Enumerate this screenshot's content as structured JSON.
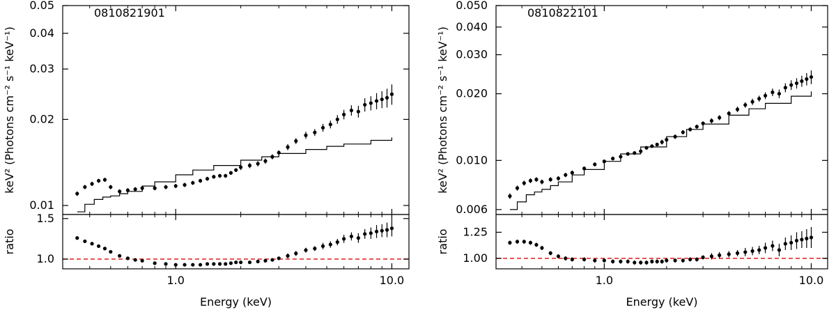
{
  "figure": {
    "xlabel": "Energy (keV)",
    "ylabel_top": "keV² (Photons cm⁻² s⁻¹ keV⁻¹)",
    "ylabel_bottom": "ratio"
  },
  "chart_data": [
    {
      "type": "scatter",
      "title": "0810821901",
      "x_scale": "log",
      "y_scale": "log",
      "xlim": [
        0.3,
        12.0
      ],
      "xticks": [
        1.0,
        10.0
      ],
      "xtick_labels": [
        "1.0",
        "10.0"
      ],
      "top": {
        "ylim": [
          0.0093,
          0.05
        ],
        "yticks": [
          0.01,
          0.02,
          0.03,
          0.04,
          0.05
        ],
        "ytick_labels": [
          "0.01",
          "0.02",
          "0.03",
          "0.04",
          "0.05"
        ],
        "model_label": "",
        "model_x": [
          0.35,
          0.38,
          0.42,
          0.46,
          0.5,
          0.55,
          0.6,
          0.7,
          0.8,
          1.0,
          1.2,
          1.5,
          2.0,
          2.5,
          3.0,
          4.0,
          5.0,
          6.0,
          8.0,
          10.0
        ],
        "model_y": [
          0.0095,
          0.0101,
          0.0105,
          0.0107,
          0.0108,
          0.011,
          0.0112,
          0.0117,
          0.0121,
          0.0128,
          0.0133,
          0.0138,
          0.0144,
          0.0148,
          0.0152,
          0.0157,
          0.0161,
          0.0164,
          0.0169,
          0.0173
        ],
        "data_x": [
          0.35,
          0.38,
          0.41,
          0.44,
          0.47,
          0.5,
          0.55,
          0.6,
          0.65,
          0.7,
          0.8,
          0.9,
          1.0,
          1.1,
          1.2,
          1.3,
          1.4,
          1.5,
          1.6,
          1.7,
          1.8,
          1.9,
          2.0,
          2.2,
          2.4,
          2.6,
          2.8,
          3.0,
          3.3,
          3.6,
          4.0,
          4.4,
          4.8,
          5.2,
          5.6,
          6.0,
          6.5,
          7.0,
          7.5,
          8.0,
          8.5,
          9.0,
          9.5,
          10.0
        ],
        "data_y": [
          0.011,
          0.0116,
          0.0119,
          0.0122,
          0.0123,
          0.0116,
          0.0112,
          0.0113,
          0.0114,
          0.0115,
          0.0115,
          0.0116,
          0.0117,
          0.0118,
          0.012,
          0.0122,
          0.0124,
          0.0126,
          0.0127,
          0.0127,
          0.013,
          0.0133,
          0.0136,
          0.0138,
          0.014,
          0.0143,
          0.0148,
          0.0153,
          0.016,
          0.0168,
          0.0176,
          0.018,
          0.0187,
          0.0192,
          0.02,
          0.0208,
          0.0215,
          0.0213,
          0.0225,
          0.0228,
          0.0232,
          0.0235,
          0.0238,
          0.0245
        ],
        "data_err": [
          0.0002,
          0.0002,
          0.0002,
          0.0002,
          0.0002,
          0.0002,
          0.0002,
          0.0002,
          0.0002,
          0.0002,
          0.0002,
          0.0002,
          0.0002,
          0.0002,
          0.0002,
          0.0002,
          0.0002,
          0.0002,
          0.0002,
          0.0002,
          0.0002,
          0.0002,
          0.0003,
          0.0003,
          0.0003,
          0.0003,
          0.0003,
          0.0003,
          0.0004,
          0.0004,
          0.0005,
          0.0005,
          0.0006,
          0.0006,
          0.0007,
          0.0008,
          0.0009,
          0.001,
          0.0012,
          0.0013,
          0.0015,
          0.0016,
          0.0018,
          0.002
        ]
      },
      "bottom": {
        "ylim": [
          0.88,
          1.55
        ],
        "yticks": [
          1.0,
          1.5
        ],
        "ytick_labels": [
          "1.0",
          "1.5"
        ],
        "reference_y": 1.0,
        "reference_color": "#e31a1c",
        "data_x": [
          0.35,
          0.38,
          0.41,
          0.44,
          0.47,
          0.5,
          0.55,
          0.6,
          0.65,
          0.7,
          0.8,
          0.9,
          1.0,
          1.1,
          1.2,
          1.3,
          1.4,
          1.5,
          1.6,
          1.7,
          1.8,
          1.9,
          2.0,
          2.2,
          2.4,
          2.6,
          2.8,
          3.0,
          3.3,
          3.6,
          4.0,
          4.4,
          4.8,
          5.2,
          5.6,
          6.0,
          6.5,
          7.0,
          7.5,
          8.0,
          8.5,
          9.0,
          9.5,
          10.0
        ],
        "data_y": [
          1.26,
          1.22,
          1.19,
          1.16,
          1.13,
          1.09,
          1.04,
          1.01,
          0.99,
          0.98,
          0.95,
          0.94,
          0.93,
          0.93,
          0.93,
          0.93,
          0.94,
          0.94,
          0.94,
          0.94,
          0.95,
          0.96,
          0.96,
          0.96,
          0.97,
          0.98,
          0.99,
          1.01,
          1.04,
          1.07,
          1.11,
          1.13,
          1.16,
          1.18,
          1.21,
          1.25,
          1.28,
          1.26,
          1.31,
          1.32,
          1.34,
          1.35,
          1.36,
          1.38
        ],
        "data_err": [
          0.02,
          0.02,
          0.02,
          0.02,
          0.02,
          0.02,
          0.02,
          0.02,
          0.02,
          0.02,
          0.02,
          0.02,
          0.02,
          0.02,
          0.02,
          0.02,
          0.02,
          0.02,
          0.02,
          0.02,
          0.02,
          0.02,
          0.02,
          0.02,
          0.02,
          0.02,
          0.02,
          0.02,
          0.03,
          0.03,
          0.03,
          0.03,
          0.04,
          0.04,
          0.04,
          0.05,
          0.05,
          0.06,
          0.06,
          0.07,
          0.08,
          0.08,
          0.09,
          0.1
        ]
      }
    },
    {
      "type": "scatter",
      "title": "0810822101",
      "x_scale": "log",
      "y_scale": "log",
      "xlim": [
        0.3,
        12.0
      ],
      "xticks": [
        1.0,
        10.0
      ],
      "xtick_labels": [
        "1.0",
        "10.0"
      ],
      "top": {
        "ylim": [
          0.0057,
          0.05
        ],
        "yticks": [
          0.006,
          0.01,
          0.02,
          0.03,
          0.04,
          0.05
        ],
        "ytick_labels": [
          "0.006",
          "0.010",
          "0.020",
          "0.030",
          "0.040",
          "0.050"
        ],
        "model_label": "",
        "model_x": [
          0.35,
          0.38,
          0.42,
          0.46,
          0.5,
          0.55,
          0.6,
          0.7,
          0.8,
          1.0,
          1.2,
          1.5,
          2.0,
          2.5,
          3.0,
          4.0,
          5.0,
          6.0,
          8.0,
          10.0
        ],
        "model_y": [
          0.006,
          0.0065,
          0.007,
          0.0072,
          0.0074,
          0.0077,
          0.008,
          0.0086,
          0.0091,
          0.0099,
          0.0107,
          0.0115,
          0.0128,
          0.0138,
          0.0146,
          0.016,
          0.0171,
          0.0181,
          0.0195,
          0.0205
        ],
        "data_x": [
          0.35,
          0.38,
          0.41,
          0.44,
          0.47,
          0.5,
          0.55,
          0.6,
          0.65,
          0.7,
          0.8,
          0.9,
          1.0,
          1.1,
          1.2,
          1.3,
          1.4,
          1.5,
          1.6,
          1.7,
          1.8,
          1.9,
          2.0,
          2.2,
          2.4,
          2.6,
          2.8,
          3.0,
          3.3,
          3.6,
          4.0,
          4.4,
          4.8,
          5.2,
          5.6,
          6.0,
          6.5,
          7.0,
          7.5,
          8.0,
          8.5,
          9.0,
          9.5,
          10.0
        ],
        "data_y": [
          0.0069,
          0.0075,
          0.0079,
          0.0081,
          0.0082,
          0.008,
          0.0082,
          0.0083,
          0.0086,
          0.0088,
          0.0092,
          0.0096,
          0.0099,
          0.0102,
          0.0104,
          0.0107,
          0.0108,
          0.011,
          0.0114,
          0.0116,
          0.0118,
          0.0121,
          0.0124,
          0.0128,
          0.0134,
          0.0138,
          0.0142,
          0.0147,
          0.0151,
          0.0156,
          0.0163,
          0.017,
          0.0178,
          0.0184,
          0.019,
          0.0196,
          0.0203,
          0.02,
          0.0213,
          0.0219,
          0.0223,
          0.0228,
          0.0233,
          0.0238
        ],
        "data_err": [
          0.0002,
          0.0002,
          0.0002,
          0.0002,
          0.0002,
          0.0002,
          0.0002,
          0.0002,
          0.0002,
          0.0002,
          0.0002,
          0.0002,
          0.0002,
          0.0002,
          0.0002,
          0.0002,
          0.0002,
          0.0002,
          0.0002,
          0.0002,
          0.0002,
          0.0003,
          0.0003,
          0.0003,
          0.0003,
          0.0003,
          0.0003,
          0.0003,
          0.0004,
          0.0004,
          0.0004,
          0.0005,
          0.0005,
          0.0006,
          0.0006,
          0.0007,
          0.0008,
          0.0009,
          0.001,
          0.0011,
          0.0012,
          0.0013,
          0.0015,
          0.0017
        ]
      },
      "bottom": {
        "ylim": [
          0.9,
          1.42
        ],
        "yticks": [
          1.0,
          1.25
        ],
        "ytick_labels": [
          "1.00",
          "1.25"
        ],
        "reference_y": 1.0,
        "reference_color": "#e31a1c",
        "data_x": [
          0.35,
          0.38,
          0.41,
          0.44,
          0.47,
          0.5,
          0.55,
          0.6,
          0.65,
          0.7,
          0.8,
          0.9,
          1.0,
          1.1,
          1.2,
          1.3,
          1.4,
          1.5,
          1.6,
          1.7,
          1.8,
          1.9,
          2.0,
          2.2,
          2.4,
          2.6,
          2.8,
          3.0,
          3.3,
          3.6,
          4.0,
          4.4,
          4.8,
          5.2,
          5.6,
          6.0,
          6.5,
          7.0,
          7.5,
          8.0,
          8.5,
          9.0,
          9.5,
          10.0
        ],
        "data_y": [
          1.15,
          1.16,
          1.16,
          1.15,
          1.13,
          1.1,
          1.05,
          1.02,
          1.0,
          0.99,
          0.99,
          0.98,
          0.98,
          0.97,
          0.97,
          0.97,
          0.96,
          0.96,
          0.96,
          0.97,
          0.97,
          0.97,
          0.98,
          0.98,
          0.98,
          0.99,
          0.99,
          1.01,
          1.02,
          1.03,
          1.04,
          1.05,
          1.06,
          1.07,
          1.08,
          1.1,
          1.12,
          1.08,
          1.14,
          1.15,
          1.17,
          1.18,
          1.19,
          1.2
        ],
        "data_err": [
          0.02,
          0.02,
          0.02,
          0.02,
          0.02,
          0.02,
          0.02,
          0.02,
          0.02,
          0.02,
          0.02,
          0.02,
          0.02,
          0.02,
          0.02,
          0.02,
          0.02,
          0.02,
          0.02,
          0.02,
          0.02,
          0.02,
          0.02,
          0.02,
          0.02,
          0.02,
          0.02,
          0.02,
          0.03,
          0.03,
          0.03,
          0.03,
          0.04,
          0.04,
          0.04,
          0.05,
          0.05,
          0.06,
          0.06,
          0.07,
          0.08,
          0.08,
          0.09,
          0.1
        ]
      }
    }
  ]
}
